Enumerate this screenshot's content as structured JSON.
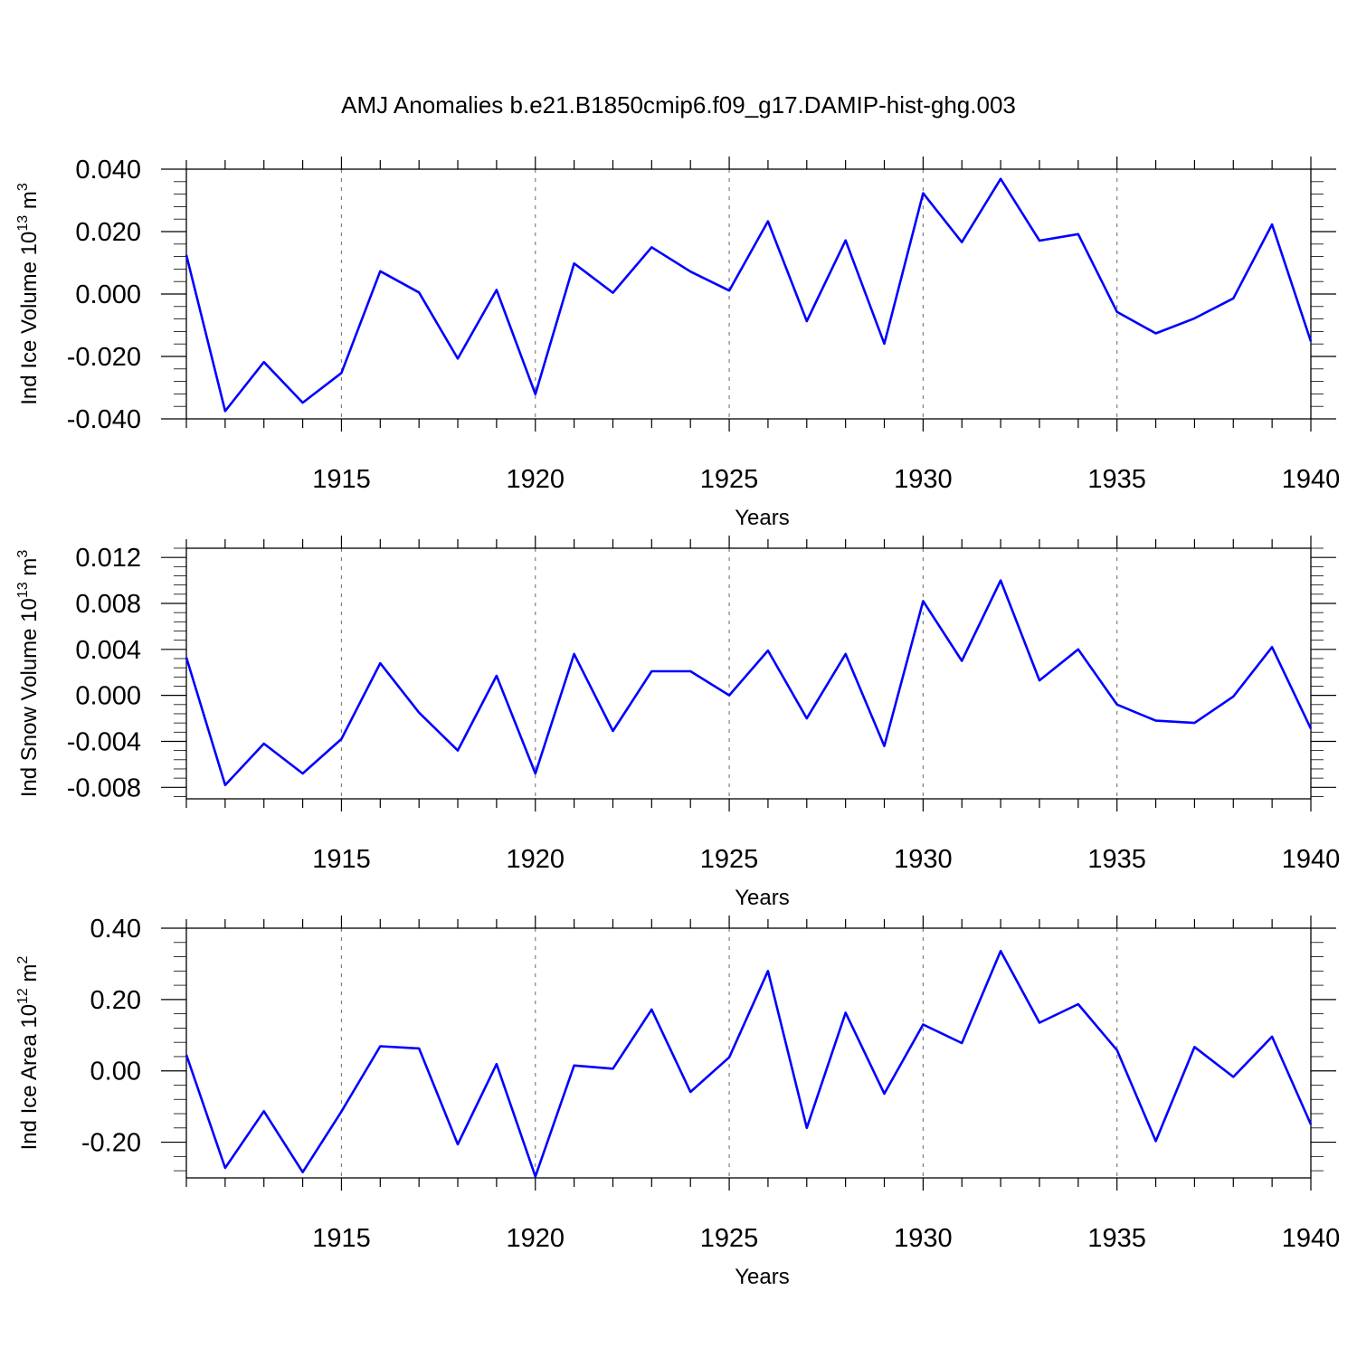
{
  "title": "AMJ Anomalies b.e21.B1850cmip6.f09_g17.DAMIP-hist-ghg.003",
  "colors": {
    "series": "#0000ff",
    "grid": "#808080",
    "axis": "#000000"
  },
  "chart_data": [
    {
      "type": "line",
      "ylabel_main": "Ind Ice Volume 10",
      "ylabel_exp": "13",
      "ylabel_unit": " m",
      "ylabel_unit_exp": "3",
      "xlabel": "Years",
      "xlim": [
        1911,
        1940
      ],
      "ylim": [
        -0.04,
        0.04
      ],
      "xticks": [
        "1915",
        "1920",
        "1925",
        "1930",
        "1935",
        "1940"
      ],
      "yticks": [
        {
          "v": 0.04,
          "label": "0.040"
        },
        {
          "v": 0.02,
          "label": "0.020"
        },
        {
          "v": 0.0,
          "label": "0.000"
        },
        {
          "v": -0.02,
          "label": "-0.020"
        },
        {
          "v": -0.04,
          "label": "-0.040"
        }
      ],
      "x": [
        1911,
        1912,
        1913,
        1914,
        1915,
        1916,
        1917,
        1918,
        1919,
        1920,
        1921,
        1922,
        1923,
        1924,
        1925,
        1926,
        1927,
        1928,
        1929,
        1930,
        1931,
        1932,
        1933,
        1934,
        1935,
        1936,
        1937,
        1938,
        1939,
        1940
      ],
      "values": [
        0.0125,
        -0.0375,
        -0.0218,
        -0.0348,
        -0.0253,
        0.0073,
        0.0005,
        -0.0207,
        0.0013,
        -0.0321,
        0.0098,
        0.0004,
        0.015,
        0.0072,
        0.0011,
        0.0233,
        -0.0087,
        0.0172,
        -0.0159,
        0.0323,
        0.0166,
        0.0369,
        0.0171,
        0.0192,
        -0.0057,
        -0.0126,
        -0.0078,
        -0.0014,
        0.0223,
        -0.0152
      ]
    },
    {
      "type": "line",
      "ylabel_main": "Ind Snow Volume 10",
      "ylabel_exp": "13",
      "ylabel_unit": " m",
      "ylabel_unit_exp": "3",
      "xlabel": "Years",
      "xlim": [
        1911,
        1940
      ],
      "ylim": [
        -0.009,
        0.0128
      ],
      "xticks": [
        "1915",
        "1920",
        "1925",
        "1930",
        "1935",
        "1940"
      ],
      "yticks": [
        {
          "v": 0.012,
          "label": "0.012"
        },
        {
          "v": 0.008,
          "label": "0.008"
        },
        {
          "v": 0.004,
          "label": "0.004"
        },
        {
          "v": 0.0,
          "label": "0.000"
        },
        {
          "v": -0.004,
          "label": "-0.004"
        },
        {
          "v": -0.008,
          "label": "-0.008"
        }
      ],
      "x": [
        1911,
        1912,
        1913,
        1914,
        1915,
        1916,
        1917,
        1918,
        1919,
        1920,
        1921,
        1922,
        1923,
        1924,
        1925,
        1926,
        1927,
        1928,
        1929,
        1930,
        1931,
        1932,
        1933,
        1934,
        1935,
        1936,
        1937,
        1938,
        1939,
        1940
      ],
      "values": [
        0.0033,
        -0.0078,
        -0.0042,
        -0.0068,
        -0.0038,
        0.0028,
        -0.0015,
        -0.0048,
        0.0017,
        -0.0068,
        0.0036,
        -0.0031,
        0.0021,
        0.0021,
        0.0,
        0.0039,
        -0.002,
        0.0036,
        -0.0044,
        0.0082,
        0.003,
        0.01,
        0.0013,
        0.004,
        -0.0008,
        -0.0022,
        -0.0024,
        -0.0001,
        0.0042,
        -0.0029
      ]
    },
    {
      "type": "line",
      "ylabel_main": "Ind Ice Area 10",
      "ylabel_exp": "12",
      "ylabel_unit": " m",
      "ylabel_unit_exp": "2",
      "xlabel": "Years",
      "xlim": [
        1911,
        1940
      ],
      "ylim": [
        -0.3,
        0.4
      ],
      "xticks": [
        "1915",
        "1920",
        "1925",
        "1930",
        "1935",
        "1940"
      ],
      "yticks": [
        {
          "v": 0.4,
          "label": "0.40"
        },
        {
          "v": 0.2,
          "label": "0.20"
        },
        {
          "v": 0.0,
          "label": "0.00"
        },
        {
          "v": -0.2,
          "label": "-0.20"
        }
      ],
      "x": [
        1911,
        1912,
        1913,
        1914,
        1915,
        1916,
        1917,
        1918,
        1919,
        1920,
        1921,
        1922,
        1923,
        1924,
        1925,
        1926,
        1927,
        1928,
        1929,
        1930,
        1931,
        1932,
        1933,
        1934,
        1935,
        1936,
        1937,
        1938,
        1939,
        1940
      ],
      "values": [
        0.045,
        -0.272,
        -0.113,
        -0.284,
        -0.114,
        0.069,
        0.063,
        -0.206,
        0.019,
        -0.296,
        0.015,
        0.006,
        0.172,
        -0.059,
        0.038,
        0.28,
        -0.16,
        0.163,
        -0.064,
        0.13,
        0.078,
        0.336,
        0.135,
        0.187,
        0.058,
        -0.197,
        0.067,
        -0.017,
        0.096,
        -0.15
      ]
    }
  ]
}
